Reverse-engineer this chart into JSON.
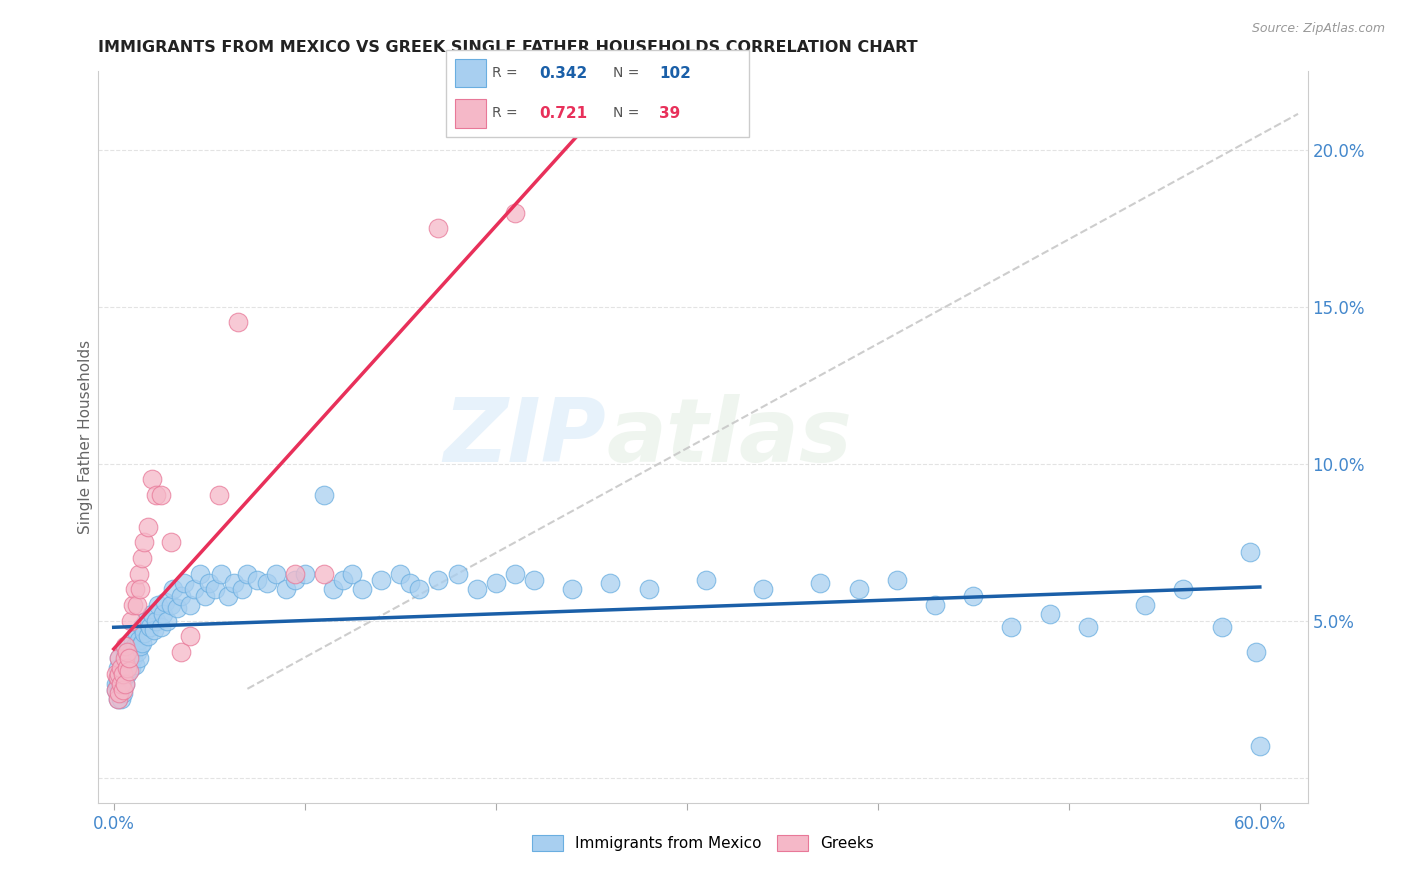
{
  "title": "IMMIGRANTS FROM MEXICO VS GREEK SINGLE FATHER HOUSEHOLDS CORRELATION CHART",
  "source": "Source: ZipAtlas.com",
  "xlabel_blue": "Immigrants from Mexico",
  "xlabel_pink": "Greeks",
  "ylabel": "Single Father Households",
  "watermark_zip": "ZIP",
  "watermark_atlas": "atlas",
  "legend_blue_R": "0.342",
  "legend_blue_N": "102",
  "legend_pink_R": "0.721",
  "legend_pink_N": "39",
  "blue_color": "#A8CFF0",
  "blue_edge": "#6AAEE0",
  "pink_color": "#F5B8C8",
  "pink_edge": "#E87898",
  "line_blue": "#1A5FA8",
  "line_pink": "#E8305A",
  "line_diag": "#C8C8C8",
  "tick_color": "#4488CC",
  "ylabel_color": "#666666",
  "blue_x": [
    0.001,
    0.001,
    0.002,
    0.002,
    0.002,
    0.003,
    0.003,
    0.003,
    0.004,
    0.004,
    0.004,
    0.005,
    0.005,
    0.005,
    0.006,
    0.006,
    0.006,
    0.007,
    0.007,
    0.008,
    0.008,
    0.009,
    0.009,
    0.01,
    0.01,
    0.011,
    0.011,
    0.012,
    0.012,
    0.013,
    0.013,
    0.014,
    0.015,
    0.015,
    0.016,
    0.017,
    0.018,
    0.019,
    0.02,
    0.021,
    0.022,
    0.023,
    0.025,
    0.026,
    0.027,
    0.028,
    0.03,
    0.031,
    0.033,
    0.035,
    0.037,
    0.04,
    0.042,
    0.045,
    0.048,
    0.05,
    0.053,
    0.056,
    0.06,
    0.063,
    0.067,
    0.07,
    0.075,
    0.08,
    0.085,
    0.09,
    0.095,
    0.1,
    0.11,
    0.115,
    0.12,
    0.125,
    0.13,
    0.14,
    0.15,
    0.155,
    0.16,
    0.17,
    0.18,
    0.19,
    0.2,
    0.21,
    0.22,
    0.24,
    0.26,
    0.28,
    0.31,
    0.34,
    0.37,
    0.39,
    0.41,
    0.43,
    0.45,
    0.47,
    0.49,
    0.51,
    0.54,
    0.56,
    0.58,
    0.595,
    0.598,
    0.6
  ],
  "blue_y": [
    0.03,
    0.028,
    0.035,
    0.03,
    0.025,
    0.032,
    0.028,
    0.038,
    0.033,
    0.03,
    0.025,
    0.036,
    0.031,
    0.027,
    0.04,
    0.035,
    0.03,
    0.038,
    0.033,
    0.042,
    0.036,
    0.04,
    0.035,
    0.044,
    0.038,
    0.042,
    0.036,
    0.046,
    0.04,
    0.044,
    0.038,
    0.042,
    0.048,
    0.043,
    0.046,
    0.05,
    0.045,
    0.048,
    0.052,
    0.047,
    0.05,
    0.055,
    0.048,
    0.052,
    0.056,
    0.05,
    0.055,
    0.06,
    0.054,
    0.058,
    0.062,
    0.055,
    0.06,
    0.065,
    0.058,
    0.062,
    0.06,
    0.065,
    0.058,
    0.062,
    0.06,
    0.065,
    0.063,
    0.062,
    0.065,
    0.06,
    0.063,
    0.065,
    0.09,
    0.06,
    0.063,
    0.065,
    0.06,
    0.063,
    0.065,
    0.062,
    0.06,
    0.063,
    0.065,
    0.06,
    0.062,
    0.065,
    0.063,
    0.06,
    0.062,
    0.06,
    0.063,
    0.06,
    0.062,
    0.06,
    0.063,
    0.055,
    0.058,
    0.048,
    0.052,
    0.048,
    0.055,
    0.06,
    0.048,
    0.072,
    0.04,
    0.01
  ],
  "pink_x": [
    0.001,
    0.001,
    0.002,
    0.002,
    0.003,
    0.003,
    0.003,
    0.004,
    0.004,
    0.005,
    0.005,
    0.006,
    0.006,
    0.006,
    0.007,
    0.007,
    0.008,
    0.008,
    0.009,
    0.01,
    0.011,
    0.012,
    0.013,
    0.014,
    0.015,
    0.016,
    0.018,
    0.02,
    0.022,
    0.025,
    0.03,
    0.035,
    0.04,
    0.055,
    0.065,
    0.095,
    0.11,
    0.17,
    0.21
  ],
  "pink_y": [
    0.028,
    0.033,
    0.025,
    0.032,
    0.027,
    0.033,
    0.038,
    0.03,
    0.035,
    0.028,
    0.033,
    0.03,
    0.038,
    0.042,
    0.035,
    0.04,
    0.034,
    0.038,
    0.05,
    0.055,
    0.06,
    0.055,
    0.065,
    0.06,
    0.07,
    0.075,
    0.08,
    0.095,
    0.09,
    0.09,
    0.075,
    0.04,
    0.045,
    0.09,
    0.145,
    0.065,
    0.065,
    0.175,
    0.18
  ]
}
